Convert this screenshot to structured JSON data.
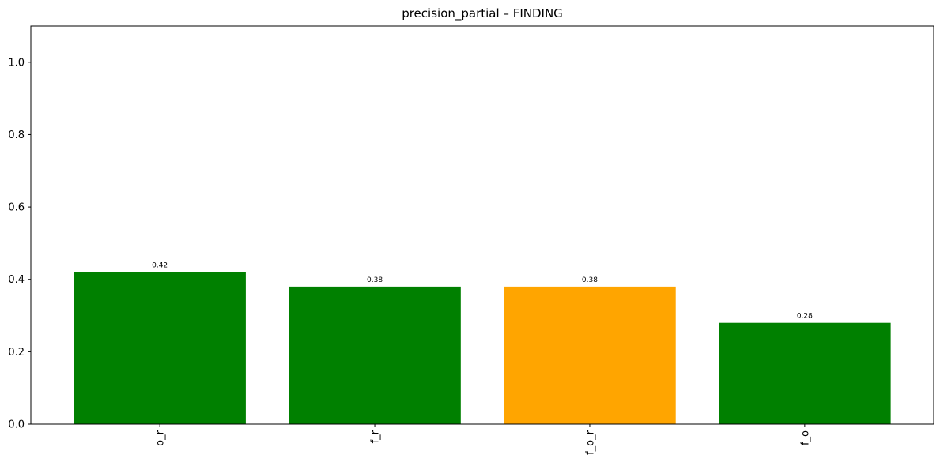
{
  "chart_data": {
    "type": "bar",
    "title": "precision_partial – FINDING",
    "xlabel": "",
    "ylabel": "",
    "categories": [
      "o_r",
      "f_r",
      "f_o_r",
      "f_o"
    ],
    "values": [
      0.42,
      0.38,
      0.38,
      0.28
    ],
    "data_labels": [
      "0.42",
      "0.38",
      "0.38",
      "0.28"
    ],
    "bar_colors": [
      "#008000",
      "#008000",
      "#ffa500",
      "#008000"
    ],
    "ylim": [
      0,
      1.1
    ],
    "yticks": [
      0.0,
      0.2,
      0.4,
      0.6,
      0.8,
      1.0
    ],
    "ytick_labels": [
      "0.0",
      "0.2",
      "0.4",
      "0.6",
      "0.8",
      "1.0"
    ],
    "grid": false,
    "legend": "none",
    "xtick_rotation": 90
  }
}
